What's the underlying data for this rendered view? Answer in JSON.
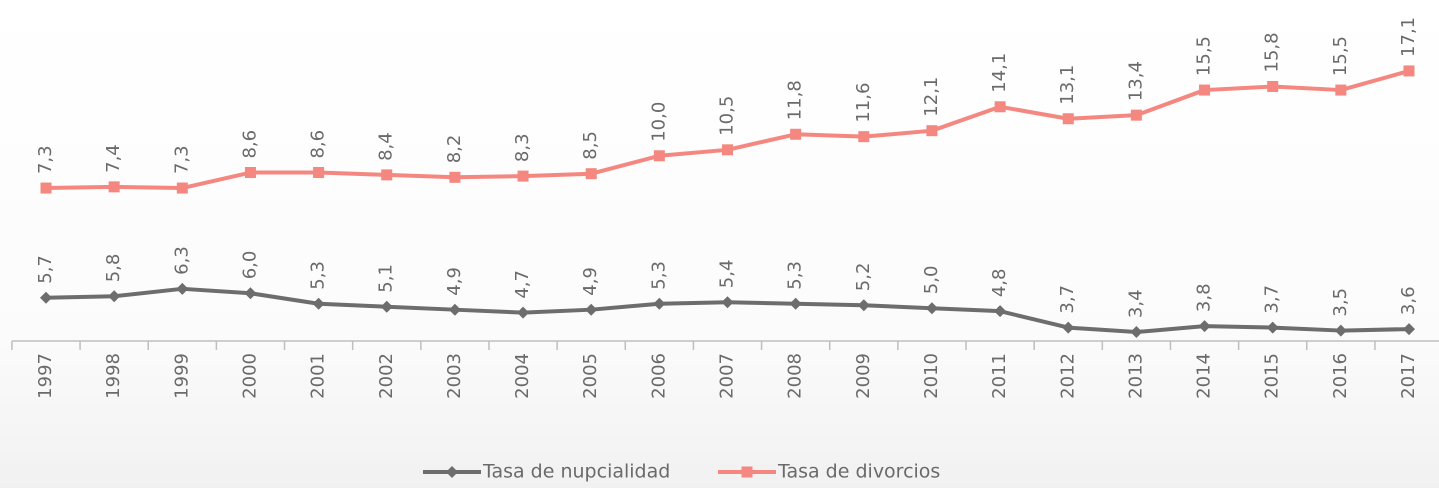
{
  "chart_data": {
    "type": "line",
    "categories": [
      "1997",
      "1998",
      "1999",
      "2000",
      "2001",
      "2002",
      "2003",
      "2004",
      "2005",
      "2006",
      "2007",
      "2008",
      "2009",
      "2010",
      "2011",
      "2012",
      "2013",
      "2014",
      "2015",
      "2016",
      "2017"
    ],
    "series": [
      {
        "name": "Tasa de nupcialidad",
        "color": "#6d6d6d",
        "marker": "diamond",
        "values": [
          5.7,
          5.8,
          6.3,
          6.0,
          5.3,
          5.1,
          4.9,
          4.7,
          4.9,
          5.3,
          5.4,
          5.3,
          5.2,
          5.0,
          4.8,
          3.7,
          3.4,
          3.8,
          3.7,
          3.5,
          3.6
        ],
        "value_labels": [
          "5,7",
          "5,8",
          "6,3",
          "6,0",
          "5,3",
          "5,1",
          "4,9",
          "4,7",
          "4,9",
          "5,3",
          "5,4",
          "5,3",
          "5,2",
          "5,0",
          "4,8",
          "3,7",
          "3,4",
          "3,8",
          "3,7",
          "3,5",
          "3,6"
        ]
      },
      {
        "name": "Tasa de divorcios",
        "color": "#f4877f",
        "marker": "square",
        "axis": "y2",
        "values": [
          7.3,
          7.4,
          7.3,
          8.6,
          8.6,
          8.4,
          8.2,
          8.3,
          8.5,
          10.0,
          10.5,
          11.8,
          11.6,
          12.1,
          14.1,
          13.1,
          13.4,
          15.5,
          15.8,
          15.5,
          17.1
        ],
        "value_labels": [
          "7,3",
          "7,4",
          "7,3",
          "8,6",
          "8,6",
          "8,4",
          "8,2",
          "8,3",
          "8,5",
          "10,0",
          "10,5",
          "11,8",
          "11,6",
          "12,1",
          "14,1",
          "13,1",
          "13,4",
          "15,5",
          "15,8",
          "15,5",
          "17,1"
        ]
      }
    ],
    "ylim": [
      2.8,
      25
    ],
    "y2lim": [
      -5.5,
      22.2
    ],
    "legend": "bottom"
  }
}
